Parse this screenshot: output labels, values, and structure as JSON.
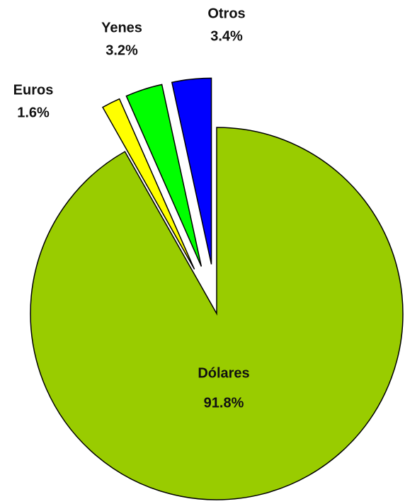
{
  "chart_data": {
    "type": "pie",
    "categories": [
      "Dólares",
      "Euros",
      "Yenes",
      "Otros"
    ],
    "values": [
      91.8,
      1.6,
      3.2,
      3.4
    ],
    "value_labels": [
      "91.8%",
      "1.6%",
      "3.2%",
      "3.4%"
    ],
    "colors": [
      "#99cc00",
      "#ffff00",
      "#00ff00",
      "#0000ff"
    ]
  }
}
